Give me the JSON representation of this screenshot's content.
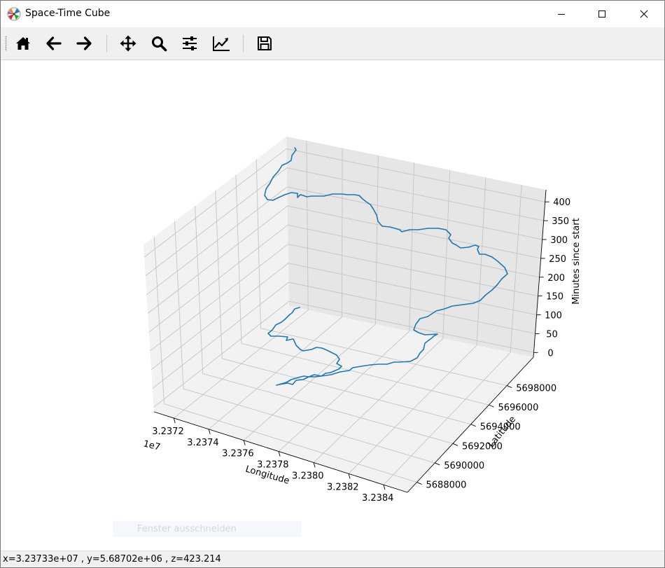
{
  "window": {
    "title": "Space-Time Cube",
    "controls": {
      "minimize": "minimize-icon",
      "maximize": "maximize-icon",
      "close": "close-icon"
    }
  },
  "toolbar": {
    "buttons": [
      {
        "name": "home-button",
        "icon": "home-icon"
      },
      {
        "name": "back-button",
        "icon": "back-arrow-icon"
      },
      {
        "name": "forward-button",
        "icon": "forward-arrow-icon"
      },
      {
        "name": "pan-button",
        "icon": "move-icon"
      },
      {
        "name": "zoom-button",
        "icon": "magnifier-icon"
      },
      {
        "name": "configure-subplots-button",
        "icon": "sliders-icon"
      },
      {
        "name": "edit-axes-button",
        "icon": "line-chart-icon"
      },
      {
        "name": "save-button",
        "icon": "floppy-disk-icon"
      }
    ]
  },
  "chart_data": {
    "type": "line3d",
    "xlabel": "Longitude",
    "ylabel": "Latitude",
    "zlabel": "Minutes since start",
    "x_offset_label": "1e7",
    "x_ticks": [
      "3.2372",
      "3.2374",
      "3.2376",
      "3.2378",
      "3.2380",
      "3.2382",
      "3.2384"
    ],
    "y_ticks": [
      "5688000",
      "5690000",
      "5692000",
      "5694000",
      "5696000",
      "5698000"
    ],
    "z_ticks": [
      "0",
      "50",
      "100",
      "150",
      "200",
      "250",
      "300",
      "350",
      "400"
    ],
    "grid": true,
    "series_color": "#1f77b4"
  },
  "ghost_tooltip": "Fenster ausschneiden",
  "status": {
    "text": "x=3.23733e+07 , y=5.68702e+06 , z=423.214"
  }
}
